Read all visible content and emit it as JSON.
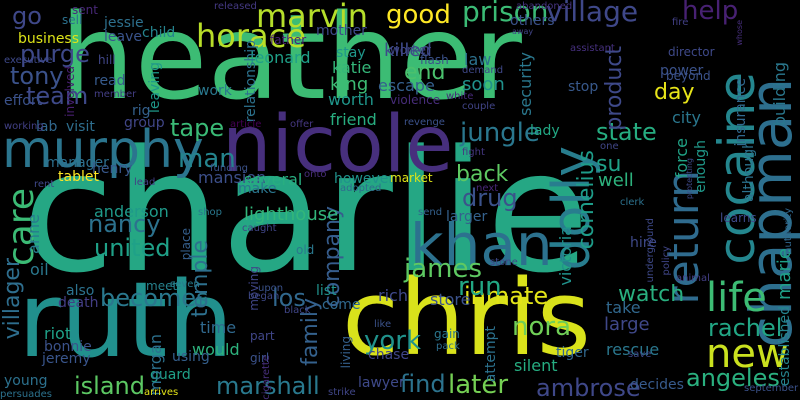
{
  "words": [
    {
      "t": "charlie",
      "c": "#25a784"
    },
    {
      "t": "heather",
      "c": "#3cbc74"
    },
    {
      "t": "ruth",
      "c": "#21908d"
    },
    {
      "t": "chris",
      "c": "#d9e21b"
    },
    {
      "t": "nicole",
      "c": "#472f7d"
    },
    {
      "t": "khan",
      "c": "#2c718e"
    },
    {
      "t": "chapman",
      "c": "#2d6f8e"
    },
    {
      "t": "murphy",
      "c": "#2b758e"
    },
    {
      "t": "cocaine",
      "c": "#24868e"
    },
    {
      "t": "dolly",
      "c": "#287d8e"
    },
    {
      "t": "return",
      "c": "#2f6b8e"
    },
    {
      "t": "new",
      "c": "#cae11f"
    },
    {
      "t": "life",
      "c": "#3dbc74"
    },
    {
      "t": "care",
      "c": "#3bbb75"
    },
    {
      "t": "horace",
      "c": "#b8de29"
    },
    {
      "t": "marvin",
      "c": "#b5de2b"
    },
    {
      "t": "prison",
      "c": "#3bbb75"
    },
    {
      "t": "village",
      "c": "#3f4889"
    },
    {
      "t": "good",
      "c": "#fde725"
    },
    {
      "t": "help",
      "c": "#482173"
    },
    {
      "t": "go",
      "c": "#3f4889"
    },
    {
      "t": "purge",
      "c": "#3e4989"
    },
    {
      "t": "tony",
      "c": "#3b528b"
    },
    {
      "t": "team",
      "c": "#3e4989"
    },
    {
      "t": "end",
      "c": "#4ac16d"
    },
    {
      "t": "jungle",
      "c": "#2a778e"
    },
    {
      "t": "tape",
      "c": "#3aba76"
    },
    {
      "t": "man",
      "c": "#25848e"
    },
    {
      "t": "state",
      "c": "#26ad81"
    },
    {
      "t": "inmate",
      "c": "#e2e418"
    },
    {
      "t": "watch",
      "c": "#29af7f"
    },
    {
      "t": "rachel",
      "c": "#22a785"
    },
    {
      "t": "angeles",
      "c": "#2ab07f"
    },
    {
      "t": "marshall",
      "c": "#29798e"
    },
    {
      "t": "island",
      "c": "#5cc863"
    },
    {
      "t": "ambrose",
      "c": "#3f4889"
    },
    {
      "t": "later",
      "c": "#75d054"
    },
    {
      "t": "find",
      "c": "#2c738e"
    },
    {
      "t": "nora",
      "c": "#70cf57"
    },
    {
      "t": "york",
      "c": "#20928c"
    },
    {
      "t": "james",
      "c": "#5ec962"
    },
    {
      "t": "run",
      "c": "#22a884"
    },
    {
      "t": "becomes",
      "c": "#2a788e"
    },
    {
      "t": "united",
      "c": "#1fa188"
    },
    {
      "t": "nancy",
      "c": "#2c728e"
    },
    {
      "t": "anderson",
      "c": "#1f9a8a"
    },
    {
      "t": "company",
      "c": "#365d8d"
    },
    {
      "t": "temple",
      "c": "#2d708e"
    },
    {
      "t": "los",
      "c": "#31688e"
    },
    {
      "t": "drug",
      "c": "#3b528b"
    },
    {
      "t": "back",
      "c": "#5ec962"
    },
    {
      "t": "cornelius",
      "c": "#1e9c89"
    },
    {
      "t": "victoria",
      "c": "#20928c"
    },
    {
      "t": "su",
      "c": "#1fa188"
    },
    {
      "t": "well",
      "c": "#2db27d"
    },
    {
      "t": "day",
      "c": "#e7e419"
    },
    {
      "t": "product",
      "c": "#3e4989"
    },
    {
      "t": "family",
      "c": "#34618d"
    },
    {
      "t": "villager",
      "c": "#2e6e8e"
    },
    {
      "t": "anne",
      "c": "#287c8e"
    },
    {
      "t": "oil",
      "c": "#2a788e"
    },
    {
      "t": "marie",
      "c": "#1fa088"
    },
    {
      "t": "large",
      "c": "#3f4889"
    },
    {
      "t": "take",
      "c": "#31688e"
    },
    {
      "t": "rescue",
      "c": "#2a778e"
    },
    {
      "t": "tiger",
      "c": "#31688e"
    },
    {
      "t": "silent",
      "c": "#26ad81"
    },
    {
      "t": "riot",
      "c": "#1fa188"
    },
    {
      "t": "bonnie",
      "c": "#3b528b"
    },
    {
      "t": "jeremy",
      "c": "#39558c"
    },
    {
      "t": "young",
      "c": "#2c718e"
    },
    {
      "t": "guard",
      "c": "#1fa188"
    },
    {
      "t": "would",
      "c": "#2db27d"
    },
    {
      "t": "time",
      "c": "#30698e"
    },
    {
      "t": "morgan",
      "c": "#2c718e"
    },
    {
      "t": "lighthouse",
      "c": "#32b67a"
    },
    {
      "t": "mansion",
      "c": "#3c4f8a"
    },
    {
      "t": "several",
      "c": "#28ae80"
    },
    {
      "t": "make",
      "c": "#2a768e"
    },
    {
      "t": "henry",
      "c": "#38588c"
    },
    {
      "t": "leonard",
      "c": "#1fa088"
    },
    {
      "t": "katie",
      "c": "#35b779"
    },
    {
      "t": "king",
      "c": "#3dbc74"
    },
    {
      "t": "worth",
      "c": "#1f968b"
    },
    {
      "t": "escape",
      "c": "#35608d"
    },
    {
      "t": "killed",
      "c": "#3e4a89"
    },
    {
      "t": "stay",
      "c": "#1f978b"
    },
    {
      "t": "law",
      "c": "#2c718e"
    },
    {
      "t": "soon",
      "c": "#20928c"
    },
    {
      "t": "security",
      "c": "#2a788e"
    },
    {
      "t": "friend",
      "c": "#28ae80"
    },
    {
      "t": "lady",
      "c": "#22a884"
    },
    {
      "t": "city",
      "c": "#2a778e"
    },
    {
      "t": "force",
      "c": "#20a386"
    },
    {
      "t": "enough",
      "c": "#1f998a"
    },
    {
      "t": "insurance",
      "c": "#31688e"
    },
    {
      "t": "building",
      "c": "#2a788e"
    },
    {
      "t": "although",
      "c": "#2c728e"
    },
    {
      "t": "power",
      "c": "#3b528b"
    },
    {
      "t": "beyond",
      "c": "#3b528b"
    },
    {
      "t": "stop",
      "c": "#38598c"
    },
    {
      "t": "others",
      "c": "#3b528b"
    },
    {
      "t": "director",
      "c": "#3e4989"
    },
    {
      "t": "fire",
      "c": "#424086"
    },
    {
      "t": "whose",
      "c": "#472f7d"
    },
    {
      "t": "assistant",
      "c": "#46307e"
    },
    {
      "t": "away",
      "c": "#414487"
    },
    {
      "t": "abandoned",
      "c": "#46337f"
    },
    {
      "t": "released",
      "c": "#443983"
    },
    {
      "t": "jessie",
      "c": "#2d708e"
    },
    {
      "t": "sell",
      "c": "#2c718e"
    },
    {
      "t": "leave",
      "c": "#3a548c"
    },
    {
      "t": "child",
      "c": "#25848e"
    },
    {
      "t": "mother",
      "c": "#3e4989"
    },
    {
      "t": "father",
      "c": "#482475"
    },
    {
      "t": "hill",
      "c": "#404688"
    },
    {
      "t": "worker",
      "c": "#404688"
    },
    {
      "t": "flash",
      "c": "#3b528b"
    },
    {
      "t": "business",
      "c": "#dde318"
    },
    {
      "t": "sent",
      "c": "#482878"
    },
    {
      "t": "executive",
      "c": "#3e4989"
    },
    {
      "t": "read",
      "c": "#375b8d"
    },
    {
      "t": "member",
      "c": "#433e85"
    },
    {
      "t": "involved",
      "c": "#481f70"
    },
    {
      "t": "leaving",
      "c": "#1f998a"
    },
    {
      "t": "relationship",
      "c": "#2c728e"
    },
    {
      "t": "work",
      "c": "#2a788e"
    },
    {
      "t": "rig",
      "c": "#34618d"
    },
    {
      "t": "group",
      "c": "#404688"
    },
    {
      "t": "effort",
      "c": "#3b528b"
    },
    {
      "t": "lab",
      "c": "#31688e"
    },
    {
      "t": "visit",
      "c": "#2e6e8e"
    },
    {
      "t": "working",
      "c": "#424086"
    },
    {
      "t": "manager",
      "c": "#2d708e"
    },
    {
      "t": "tablet",
      "c": "#fde725"
    },
    {
      "t": "rent",
      "c": "#3f4889"
    },
    {
      "t": "lead",
      "c": "#433e85"
    },
    {
      "t": "article",
      "c": "#440154"
    },
    {
      "t": "offer",
      "c": "#453781"
    },
    {
      "t": "revenge",
      "c": "#3b528b"
    },
    {
      "t": "violence",
      "c": "#472c7a"
    },
    {
      "t": "demand",
      "c": "#3f4889"
    },
    {
      "t": "couple",
      "c": "#414487"
    },
    {
      "t": "white",
      "c": "#472a7a"
    },
    {
      "t": "funding",
      "c": "#3b528b"
    },
    {
      "t": "fight",
      "c": "#453781"
    },
    {
      "t": "next",
      "c": "#482878"
    },
    {
      "t": "however",
      "c": "#20928c"
    },
    {
      "t": "adopted",
      "c": "#2f6c8e"
    },
    {
      "t": "market",
      "c": "#dde318"
    },
    {
      "t": "one",
      "c": "#404688"
    },
    {
      "t": "protecting",
      "c": "#3e4989"
    },
    {
      "t": "clerk",
      "c": "#2c728e"
    },
    {
      "t": "send",
      "c": "#34618d"
    },
    {
      "t": "larger",
      "c": "#34618d"
    },
    {
      "t": "shop",
      "c": "#2a788e"
    },
    {
      "t": "place",
      "c": "#355f8d"
    },
    {
      "t": "caught",
      "c": "#404688"
    },
    {
      "t": "onto",
      "c": "#472d7b"
    },
    {
      "t": "old",
      "c": "#2a788e"
    },
    {
      "t": "moving",
      "c": "#404688"
    },
    {
      "t": "seven",
      "c": "#287c8e"
    },
    {
      "t": "meet",
      "c": "#26828e"
    },
    {
      "t": "upon",
      "c": "#3b528b"
    },
    {
      "t": "began",
      "c": "#3e4989"
    },
    {
      "t": "black",
      "c": "#404688"
    },
    {
      "t": "list",
      "c": "#20928c"
    },
    {
      "t": "come",
      "c": "#30698e"
    },
    {
      "t": "rich",
      "c": "#3f4889"
    },
    {
      "t": "store",
      "c": "#3b528b"
    },
    {
      "t": "attempt",
      "c": "#2c728e"
    },
    {
      "t": "gain",
      "c": "#2a778e"
    },
    {
      "t": "pack",
      "c": "#2e6e8e"
    },
    {
      "t": "like",
      "c": "#3b528b"
    },
    {
      "t": "part",
      "c": "#404688"
    },
    {
      "t": "girl",
      "c": "#3b528b"
    },
    {
      "t": "chase",
      "c": "#404688"
    },
    {
      "t": "lawyer",
      "c": "#3e4989"
    },
    {
      "t": "living",
      "c": "#35608d"
    },
    {
      "t": "strike",
      "c": "#404688"
    },
    {
      "t": "arrives",
      "c": "#e3e418"
    },
    {
      "t": "persuades",
      "c": "#2c728e"
    },
    {
      "t": "decides",
      "c": "#375b8d"
    },
    {
      "t": "september",
      "c": "#3b528b"
    },
    {
      "t": "death",
      "c": "#433e85"
    },
    {
      "t": "also",
      "c": "#2c728e"
    },
    {
      "t": "using",
      "c": "#35608d"
    },
    {
      "t": "hire",
      "c": "#3e4989"
    },
    {
      "t": "underground",
      "c": "#3e4989"
    },
    {
      "t": "policy",
      "c": "#404688"
    },
    {
      "t": "save",
      "c": "#3e4989"
    },
    {
      "t": "stone",
      "c": "#3e4989"
    },
    {
      "t": "animal",
      "c": "#433e85"
    },
    {
      "t": "authority",
      "c": "#31688e"
    },
    {
      "t": "learns",
      "c": "#3e4989"
    },
    {
      "t": "established",
      "c": "#25848e"
    },
    {
      "t": "cigarette",
      "c": "#472f7d"
    }
  ]
}
